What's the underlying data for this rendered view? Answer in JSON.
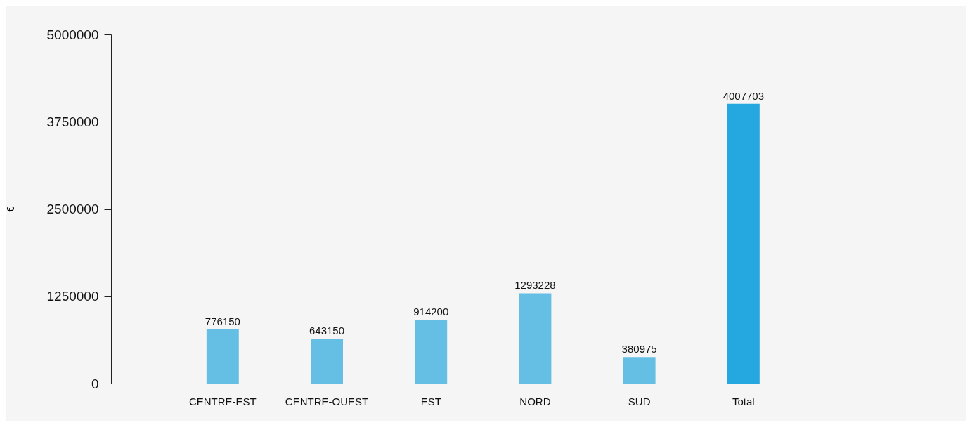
{
  "chart_data": {
    "type": "bar",
    "ylabel": "€",
    "categories": [
      "CENTRE-EST",
      "CENTRE-OUEST",
      "EST",
      "NORD",
      "SUD",
      "Total"
    ],
    "values": [
      776150,
      643150,
      914200,
      1293228,
      380975,
      4007703
    ],
    "colors": [
      "#65bfe4",
      "#65bfe4",
      "#65bfe4",
      "#65bfe4",
      "#65bfe4",
      "#25a8df"
    ],
    "ylim": [
      0,
      5000000
    ],
    "yticks": [
      0,
      1250000,
      2500000,
      3750000,
      5000000
    ],
    "data_labels": true
  }
}
